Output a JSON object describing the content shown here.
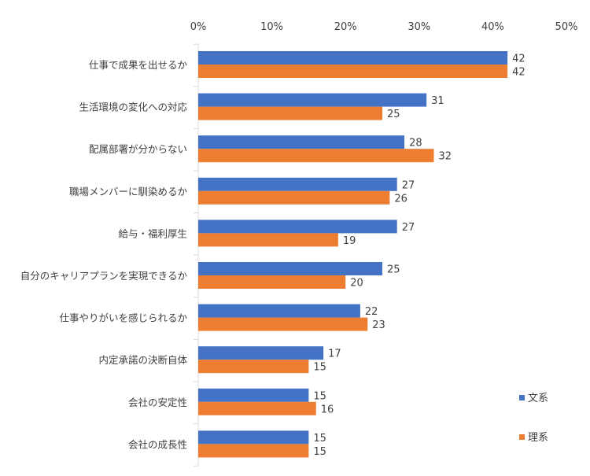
{
  "chart_data": {
    "type": "bar",
    "orientation": "horizontal",
    "categories": [
      "仕事で成果を出せるか",
      "生活環境の変化への対応",
      "配属部署が分からない",
      "職場メンバーに馴染めるか",
      "給与・福利厚生",
      "自分のキャリアプランを実現できるか",
      "仕事やりがいを感じられるか",
      "内定承諾の決断自体",
      "会社の安定性",
      "会社の成長性"
    ],
    "series": [
      {
        "name": "文系",
        "color": "#4472C4",
        "values": [
          42,
          31,
          28,
          27,
          27,
          25,
          22,
          17,
          15,
          15
        ]
      },
      {
        "name": "理系",
        "color": "#ED7D31",
        "values": [
          42,
          25,
          32,
          26,
          19,
          20,
          23,
          15,
          16,
          15
        ]
      }
    ],
    "xlim": [
      0,
      50
    ],
    "x_ticks": [
      "0%",
      "10%",
      "20%",
      "30%",
      "40%",
      "50%"
    ],
    "x_axis_position": "top",
    "grid": false,
    "legend_position": "bottom-right",
    "data_labels": true
  }
}
